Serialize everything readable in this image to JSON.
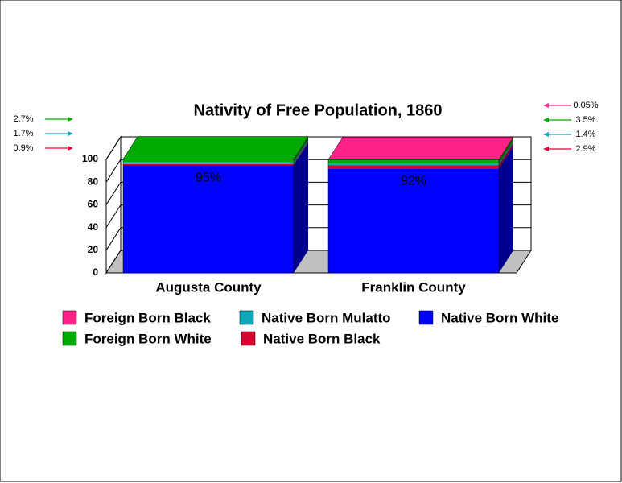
{
  "chart_data": {
    "type": "stacked-bar-3d",
    "title": "Nativity of Free Population, 1860",
    "categories": [
      "Augusta County",
      "Franklin County"
    ],
    "ylim": [
      0,
      100
    ],
    "yticks": [
      0,
      20,
      40,
      60,
      80,
      100
    ],
    "grid": true,
    "series": [
      {
        "name": "Native Born White",
        "color": "#0000ff",
        "values": [
          95,
          92
        ],
        "value_labels": [
          "95%",
          "92%"
        ]
      },
      {
        "name": "Native Born Black",
        "color": "#dd0033",
        "values": [
          0.9,
          2.9
        ],
        "value_labels": [
          "0.9%",
          "2.9%"
        ]
      },
      {
        "name": "Native Born Mulatto",
        "color": "#10a8b8",
        "values": [
          1.7,
          1.4
        ],
        "value_labels": [
          "1.7%",
          "1.4%"
        ]
      },
      {
        "name": "Foreign Born White",
        "color": "#00aa00",
        "values": [
          2.7,
          3.5
        ],
        "value_labels": [
          "2.7%",
          "3.5%"
        ]
      },
      {
        "name": "Foreign Born Black",
        "color": "#ff2288",
        "values": [
          0,
          0.05
        ],
        "value_labels": [
          null,
          "0.05%"
        ]
      }
    ]
  }
}
